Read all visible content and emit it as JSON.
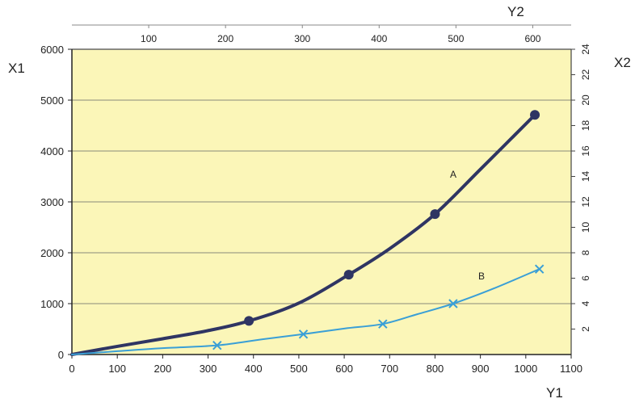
{
  "chart_data": {
    "type": "line",
    "x_axis_bottom": {
      "label": "Y1",
      "range": [
        0,
        1100
      ],
      "ticks": [
        "0",
        "100",
        "200",
        "300",
        "400",
        "500",
        "600",
        "700",
        "800",
        "900",
        "1000",
        "1100"
      ]
    },
    "x_axis_top": {
      "label": "Y2",
      "range": [
        0,
        650
      ],
      "ticks": [
        "100",
        "200",
        "300",
        "400",
        "500",
        "600"
      ]
    },
    "y_axis_left": {
      "label": "X1",
      "range": [
        0,
        6000
      ],
      "ticks": [
        "0",
        "1000",
        "2000",
        "3000",
        "4000",
        "5000",
        "6000"
      ]
    },
    "y_axis_right": {
      "label": "X2",
      "range": [
        0,
        24
      ],
      "ticks": [
        "2",
        "4",
        "6",
        "8",
        "10",
        "12",
        "14",
        "16",
        "18",
        "20",
        "22",
        "24"
      ]
    },
    "grid": "horizontal",
    "background_color": "#fbf6b8",
    "series": [
      {
        "name": "A",
        "color": "#2f3563",
        "marker": "circle",
        "line": [
          [
            0,
            0
          ],
          [
            100,
            160
          ],
          [
            200,
            310
          ],
          [
            300,
            470
          ],
          [
            390,
            660
          ],
          [
            500,
            1010
          ],
          [
            610,
            1570
          ],
          [
            700,
            2080
          ],
          [
            800,
            2760
          ],
          [
            900,
            3640
          ],
          [
            1020,
            4710
          ]
        ],
        "points": [
          [
            390,
            660
          ],
          [
            610,
            1570
          ],
          [
            800,
            2760
          ],
          [
            1020,
            4710
          ]
        ]
      },
      {
        "name": "B",
        "color": "#3a9fd6",
        "marker": "x",
        "line": [
          [
            0,
            0
          ],
          [
            100,
            65
          ],
          [
            200,
            125
          ],
          [
            320,
            180
          ],
          [
            420,
            300
          ],
          [
            510,
            400
          ],
          [
            600,
            510
          ],
          [
            685,
            600
          ],
          [
            760,
            790
          ],
          [
            840,
            1000
          ],
          [
            930,
            1300
          ],
          [
            1030,
            1680
          ]
        ],
        "points": [
          [
            320,
            180
          ],
          [
            510,
            400
          ],
          [
            685,
            600
          ],
          [
            840,
            1000
          ],
          [
            1030,
            1680
          ]
        ]
      }
    ]
  }
}
